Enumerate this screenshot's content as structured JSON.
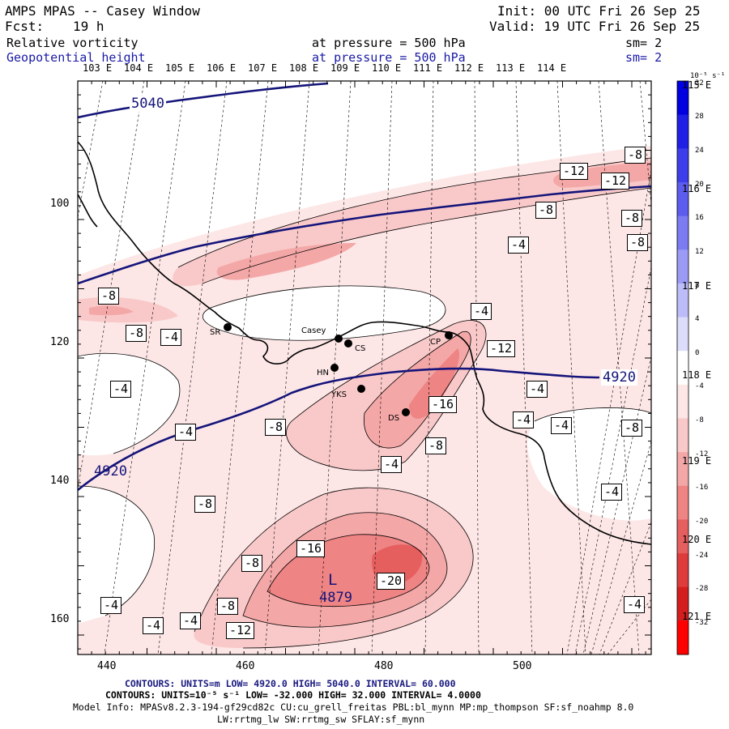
{
  "header": {
    "title": "AMPS MPAS -- Casey Window",
    "fcst_label": "Fcst:",
    "fcst_value": "19 h",
    "init": "Init: 00 UTC Fri 26 Sep 25",
    "valid": "Valid: 19 UTC Fri 26 Sep 25",
    "field1": "Relative vorticity",
    "field1_level": "at pressure =  500 hPa",
    "field1_sm": "sm= 2",
    "field2": "Geopotential height",
    "field2_level": "at pressure =  500 hPa",
    "field2_sm": "sm= 2"
  },
  "colors": {
    "height_contour": "#14147a",
    "coast": "#000000",
    "grid": "#000000",
    "shade_levels": [
      "#ffffff",
      "#fde6e6",
      "#f9c9c9",
      "#f4a7a7",
      "#ee8484",
      "#e65f5f"
    ]
  },
  "top_lon_labels": [
    "103 E",
    "104 E",
    "105 E",
    "106 E",
    "107 E",
    "108 E",
    "109 E",
    "110 E",
    "111 E",
    "112 E",
    "113 E",
    "114 E"
  ],
  "right_lon_labels": [
    "115 E",
    "116 E",
    "117 E",
    "118 E",
    "119 E",
    "120 E",
    "121 E"
  ],
  "x_ticks": [
    "440",
    "460",
    "480",
    "500"
  ],
  "y_ticks": [
    "100",
    "120",
    "140",
    "160"
  ],
  "colorbar": {
    "units": "10⁻⁵ s⁻¹",
    "values": [
      32,
      28,
      24,
      20,
      16,
      12,
      8,
      4,
      0,
      -4,
      -8,
      -12,
      -16,
      -20,
      -24,
      -28,
      -32
    ],
    "colors": [
      "#0000e0",
      "#1f1fe6",
      "#3d3dea",
      "#5c5cee",
      "#7b7bf2",
      "#9b9bf5",
      "#bcbcf8",
      "#dcdcfb",
      "#ffffff",
      "#fde6e6",
      "#f9c9c9",
      "#f4a7a7",
      "#ee8484",
      "#e65f5f",
      "#de3c3c",
      "#d41e1e",
      "#ff0000"
    ]
  },
  "height_labels": [
    "5040",
    "4920",
    "4920"
  ],
  "vort_labels": [
    "-8",
    "-12",
    "-12",
    "-8",
    "-8",
    "-8",
    "-4",
    "-8",
    "-8",
    "-4",
    "-4",
    "-12",
    "-4",
    "-4",
    "-16",
    "-8",
    "-4",
    "-8",
    "-4",
    "-4",
    "-4",
    "-8",
    "-4",
    "-8",
    "-16",
    "-20",
    "-8",
    "-8",
    "-12",
    "-4",
    "-4",
    "-4",
    "-4"
  ],
  "low": {
    "symbol": "L",
    "value": "4879"
  },
  "stations": [
    "SR",
    "Casey",
    "CS",
    "CP",
    "HN",
    "YKS",
    "DS"
  ],
  "footer": {
    "line1": "CONTOURS:  UNITS=m  LOW=  4920.0          HIGH=  5040.0        INTERVAL=   60.000",
    "line2": "CONTOURS:  UNITS=10⁻⁵ s⁻¹   LOW= -32.000         HIGH=  32.000        INTERVAL=   4.0000",
    "line3": "Model Info: MPASv8.2.3-194-gf29cd82c CU:cu_grell_freitas PBL:bl_mynn MP:mp_thompson SF:sf_noahmp 8.0",
    "line4": "LW:rrtmg_lw SW:rrtmg_sw SFLAY:sf_mynn"
  }
}
